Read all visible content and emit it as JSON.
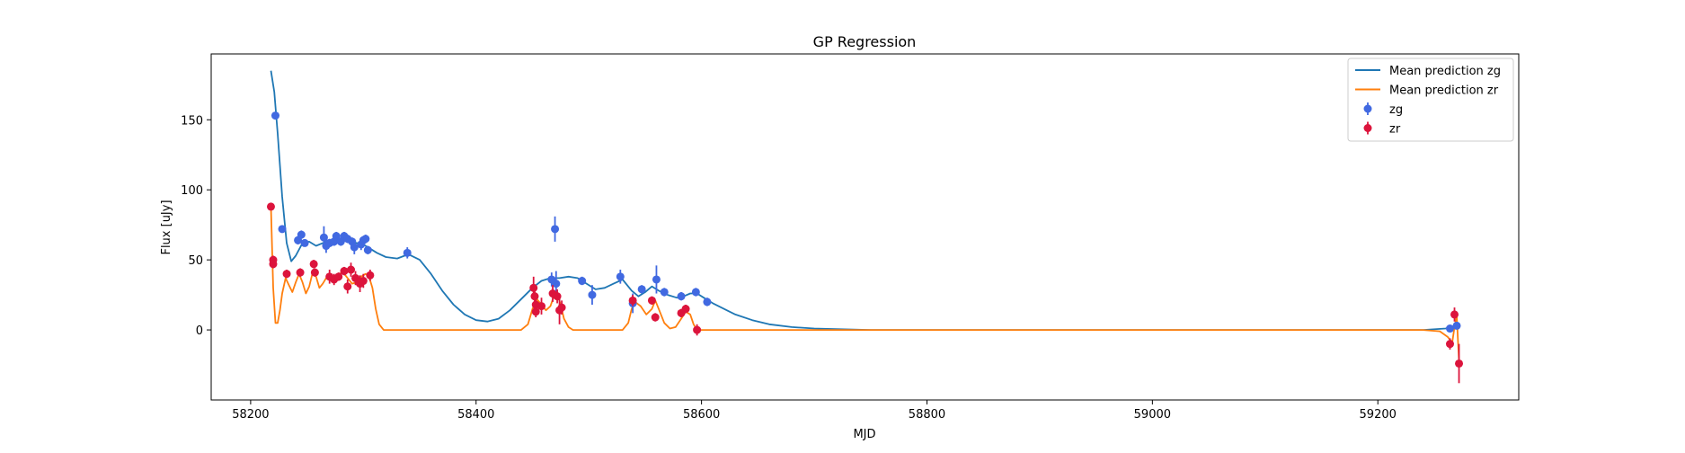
{
  "chart_data": {
    "type": "line",
    "title": "GP Regression",
    "xlabel": "MJD",
    "ylabel": "Flux [uJy]",
    "xlim": [
      58165,
      59325
    ],
    "ylim": [
      -50,
      197
    ],
    "xticks": [
      58200,
      58400,
      58600,
      58800,
      59000,
      59200
    ],
    "yticks": [
      0,
      50,
      100,
      150
    ],
    "grid": false,
    "legend_position": "top-right",
    "colors": {
      "zg": "#1f77b4",
      "zr": "#ff7f0e",
      "zg_points": "#4169e1",
      "zr_points": "#dc143c"
    },
    "series": [
      {
        "name": "Mean prediction zg",
        "kind": "line",
        "color": "#1f77b4",
        "x": [
          58218,
          58221,
          58224,
          58228,
          58232,
          58236,
          58240,
          58246,
          58252,
          58258,
          58264,
          58270,
          58276,
          58282,
          58288,
          58294,
          58300,
          58306,
          58312,
          58320,
          58330,
          58340,
          58350,
          58360,
          58370,
          58380,
          58390,
          58400,
          58410,
          58420,
          58430,
          58440,
          58450,
          58458,
          58466,
          58474,
          58482,
          58490,
          58498,
          58506,
          58514,
          58522,
          58530,
          58538,
          58544,
          58550,
          58556,
          58562,
          58570,
          58578,
          58584,
          58590,
          58596,
          58602,
          58610,
          58620,
          58630,
          58645,
          58660,
          58680,
          58700,
          58750,
          58800,
          58900,
          59000,
          59100,
          59200,
          59240,
          59260,
          59266,
          59270,
          59273
        ],
        "y": [
          185,
          170,
          140,
          95,
          62,
          49,
          53,
          62,
          63,
          60,
          62,
          64,
          63,
          64,
          63,
          62,
          61,
          58,
          55,
          52,
          51,
          54,
          50,
          40,
          28,
          18,
          11,
          7,
          6,
          8,
          14,
          22,
          30,
          35,
          37,
          37,
          38,
          37,
          33,
          29,
          30,
          33,
          36,
          28,
          24,
          27,
          31,
          28,
          25,
          23,
          24,
          26,
          26,
          23,
          19,
          15,
          11,
          7,
          4,
          2,
          1,
          0,
          0,
          0,
          0,
          0,
          0,
          0,
          1,
          2,
          3,
          4
        ]
      },
      {
        "name": "Mean prediction zr",
        "kind": "line",
        "color": "#ff7f0e",
        "x": [
          58218,
          58220,
          58222,
          58224,
          58226,
          58228,
          58231,
          58234,
          58237,
          58240,
          58243,
          58246,
          58249,
          58252,
          58255,
          58258,
          58261,
          58264,
          58267,
          58270,
          58274,
          58278,
          58282,
          58286,
          58290,
          58294,
          58298,
          58302,
          58305,
          58308,
          58311,
          58314,
          58318,
          58325,
          58340,
          58360,
          58400,
          58440,
          58446,
          58450,
          58454,
          58458,
          58462,
          58466,
          58469,
          58472,
          58475,
          58478,
          58482,
          58486,
          58490,
          58500,
          58520,
          58530,
          58535,
          58538,
          58541,
          58546,
          58551,
          58556,
          58559,
          58562,
          58567,
          58572,
          58577,
          58582,
          58586,
          58590,
          58593,
          58596,
          58599,
          58605,
          58650,
          58700,
          58800,
          58900,
          59000,
          59100,
          59200,
          59240,
          59255,
          59262,
          59266,
          59268,
          59270,
          59272
        ],
        "y": [
          88,
          30,
          5,
          5,
          14,
          26,
          37,
          32,
          27,
          34,
          40,
          34,
          26,
          31,
          41,
          38,
          30,
          33,
          37,
          36,
          38,
          40,
          41,
          37,
          33,
          34,
          38,
          40,
          38,
          30,
          15,
          4,
          0,
          0,
          0,
          0,
          0,
          0,
          4,
          15,
          22,
          18,
          14,
          17,
          24,
          26,
          18,
          8,
          2,
          0,
          0,
          0,
          0,
          0,
          5,
          15,
          20,
          17,
          11,
          15,
          21,
          15,
          5,
          1,
          2,
          8,
          13,
          11,
          4,
          0,
          0,
          0,
          0,
          0,
          0,
          0,
          0,
          0,
          0,
          0,
          -1,
          -5,
          -9,
          2,
          10,
          -22
        ]
      },
      {
        "name": "zg",
        "kind": "errorbar",
        "color": "#4169e1",
        "points": [
          {
            "x": 58222,
            "y": 153,
            "err": 2
          },
          {
            "x": 58228,
            "y": 72,
            "err": 2
          },
          {
            "x": 58242,
            "y": 64,
            "err": 3
          },
          {
            "x": 58245,
            "y": 68,
            "err": 3
          },
          {
            "x": 58248,
            "y": 62,
            "err": 2
          },
          {
            "x": 58265,
            "y": 66,
            "err": 8
          },
          {
            "x": 58267,
            "y": 60,
            "err": 5
          },
          {
            "x": 58270,
            "y": 62,
            "err": 3
          },
          {
            "x": 58274,
            "y": 63,
            "err": 3
          },
          {
            "x": 58276,
            "y": 67,
            "err": 3
          },
          {
            "x": 58280,
            "y": 63,
            "err": 3
          },
          {
            "x": 58283,
            "y": 67,
            "err": 3
          },
          {
            "x": 58286,
            "y": 65,
            "err": 3
          },
          {
            "x": 58290,
            "y": 63,
            "err": 3
          },
          {
            "x": 58292,
            "y": 59,
            "err": 5
          },
          {
            "x": 58298,
            "y": 61,
            "err": 4
          },
          {
            "x": 58300,
            "y": 64,
            "err": 3
          },
          {
            "x": 58302,
            "y": 65,
            "err": 3
          },
          {
            "x": 58304,
            "y": 57,
            "err": 3
          },
          {
            "x": 58339,
            "y": 55,
            "err": 4
          },
          {
            "x": 58467,
            "y": 36,
            "err": 5
          },
          {
            "x": 58470,
            "y": 72,
            "err": 9
          },
          {
            "x": 58471,
            "y": 33,
            "err": 9
          },
          {
            "x": 58494,
            "y": 35,
            "err": 3
          },
          {
            "x": 58503,
            "y": 25,
            "err": 7
          },
          {
            "x": 58528,
            "y": 38,
            "err": 5
          },
          {
            "x": 58539,
            "y": 19,
            "err": 7
          },
          {
            "x": 58547,
            "y": 29,
            "err": 3
          },
          {
            "x": 58560,
            "y": 36,
            "err": 10
          },
          {
            "x": 58567,
            "y": 27,
            "err": 3
          },
          {
            "x": 58582,
            "y": 24,
            "err": 3
          },
          {
            "x": 58595,
            "y": 27,
            "err": 3
          },
          {
            "x": 58605,
            "y": 20,
            "err": 3
          },
          {
            "x": 59264,
            "y": 1,
            "err": 2
          },
          {
            "x": 59270,
            "y": 3,
            "err": 2
          }
        ]
      },
      {
        "name": "zr",
        "kind": "errorbar",
        "color": "#dc143c",
        "points": [
          {
            "x": 58218,
            "y": 88,
            "err": 2
          },
          {
            "x": 58220,
            "y": 50,
            "err": 3
          },
          {
            "x": 58220,
            "y": 47,
            "err": 3
          },
          {
            "x": 58232,
            "y": 40,
            "err": 3
          },
          {
            "x": 58244,
            "y": 41,
            "err": 3
          },
          {
            "x": 58256,
            "y": 47,
            "err": 3
          },
          {
            "x": 58257,
            "y": 41,
            "err": 3
          },
          {
            "x": 58270,
            "y": 38,
            "err": 5
          },
          {
            "x": 58274,
            "y": 36,
            "err": 4
          },
          {
            "x": 58278,
            "y": 38,
            "err": 3
          },
          {
            "x": 58283,
            "y": 42,
            "err": 3
          },
          {
            "x": 58286,
            "y": 31,
            "err": 5
          },
          {
            "x": 58289,
            "y": 43,
            "err": 5
          },
          {
            "x": 58293,
            "y": 37,
            "err": 5
          },
          {
            "x": 58297,
            "y": 33,
            "err": 6
          },
          {
            "x": 58300,
            "y": 35,
            "err": 5
          },
          {
            "x": 58306,
            "y": 39,
            "err": 4
          },
          {
            "x": 58451,
            "y": 30,
            "err": 8
          },
          {
            "x": 58452,
            "y": 24,
            "err": 7
          },
          {
            "x": 58453,
            "y": 18,
            "err": 6
          },
          {
            "x": 58453,
            "y": 13,
            "err": 4
          },
          {
            "x": 58458,
            "y": 17,
            "err": 6
          },
          {
            "x": 58468,
            "y": 26,
            "err": 6
          },
          {
            "x": 58472,
            "y": 24,
            "err": 5
          },
          {
            "x": 58474,
            "y": 14,
            "err": 10
          },
          {
            "x": 58476,
            "y": 16,
            "err": 5
          },
          {
            "x": 58539,
            "y": 21,
            "err": 4
          },
          {
            "x": 58556,
            "y": 21,
            "err": 3
          },
          {
            "x": 58559,
            "y": 9,
            "err": 3
          },
          {
            "x": 58582,
            "y": 12,
            "err": 3
          },
          {
            "x": 58586,
            "y": 15,
            "err": 3
          },
          {
            "x": 58596,
            "y": 0,
            "err": 4
          },
          {
            "x": 59264,
            "y": -10,
            "err": 4
          },
          {
            "x": 59268,
            "y": 11,
            "err": 5
          },
          {
            "x": 59272,
            "y": -24,
            "err": 14
          }
        ]
      }
    ]
  }
}
